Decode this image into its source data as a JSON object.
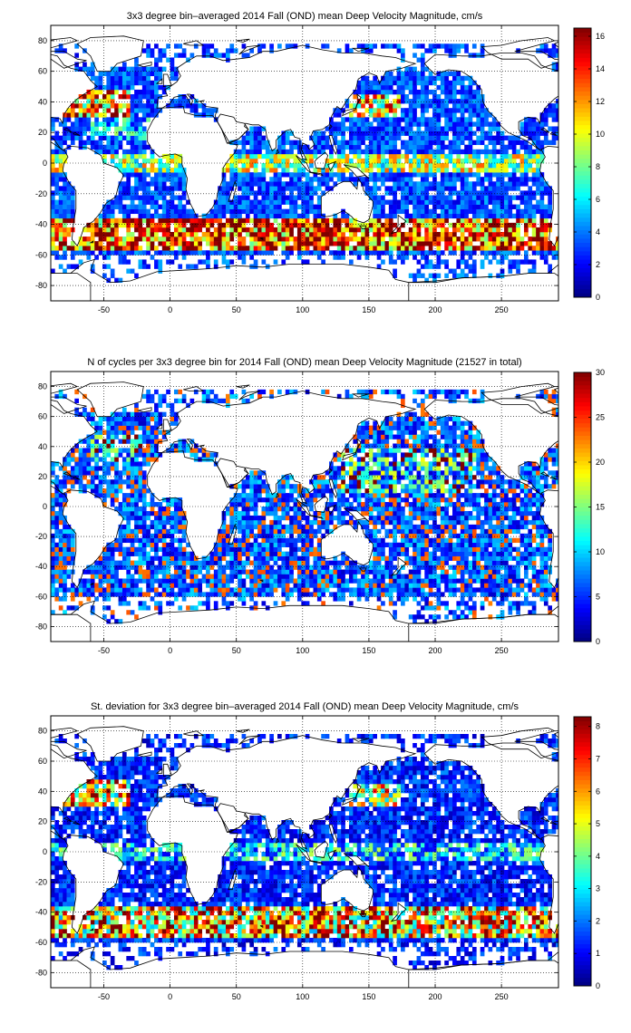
{
  "chart_data": [
    {
      "type": "heatmap",
      "title": "3x3 degree bin–averaged 2014 Fall (OND) mean Deep Velocity Magnitude, cm/s",
      "xlim": [
        -90,
        293
      ],
      "ylim": [
        -90,
        90
      ],
      "xticks": [
        -50,
        0,
        50,
        100,
        150,
        200,
        250
      ],
      "yticks": [
        80,
        60,
        40,
        20,
        0,
        -20,
        -40,
        -60,
        -80
      ],
      "grid": true,
      "colorbar": {
        "min": 0,
        "max": 16.5,
        "ticks": [
          0,
          2,
          4,
          6,
          8,
          10,
          12,
          14,
          16
        ]
      },
      "field": "mean"
    },
    {
      "type": "heatmap",
      "title": "N of cycles per 3x3 degree bin for 2014 Fall (OND) mean Deep Velocity Magnitude (21527 in total)",
      "xlim": [
        -90,
        293
      ],
      "ylim": [
        -90,
        90
      ],
      "xticks": [
        -50,
        0,
        50,
        100,
        150,
        200,
        250
      ],
      "yticks": [
        80,
        60,
        40,
        20,
        0,
        -20,
        -40,
        -60,
        -80
      ],
      "grid": true,
      "colorbar": {
        "min": 0,
        "max": 30,
        "ticks": [
          0,
          5,
          10,
          15,
          20,
          25,
          30
        ]
      },
      "field": "count"
    },
    {
      "type": "heatmap",
      "title": "St. deviation for 3x3 degree bin–averaged 2014 Fall (OND) mean Deep Velocity Magnitude, cm/s",
      "xlim": [
        -90,
        293
      ],
      "ylim": [
        -90,
        90
      ],
      "xticks": [
        -50,
        0,
        50,
        100,
        150,
        200,
        250
      ],
      "yticks": [
        80,
        60,
        40,
        20,
        0,
        -20,
        -40,
        -60,
        -80
      ],
      "grid": true,
      "colorbar": {
        "min": 0,
        "max": 8.3,
        "ticks": [
          0,
          1,
          2,
          3,
          4,
          5,
          6,
          7,
          8
        ]
      },
      "field": "std"
    }
  ],
  "colormap": "jet",
  "bin_size_deg": 3
}
